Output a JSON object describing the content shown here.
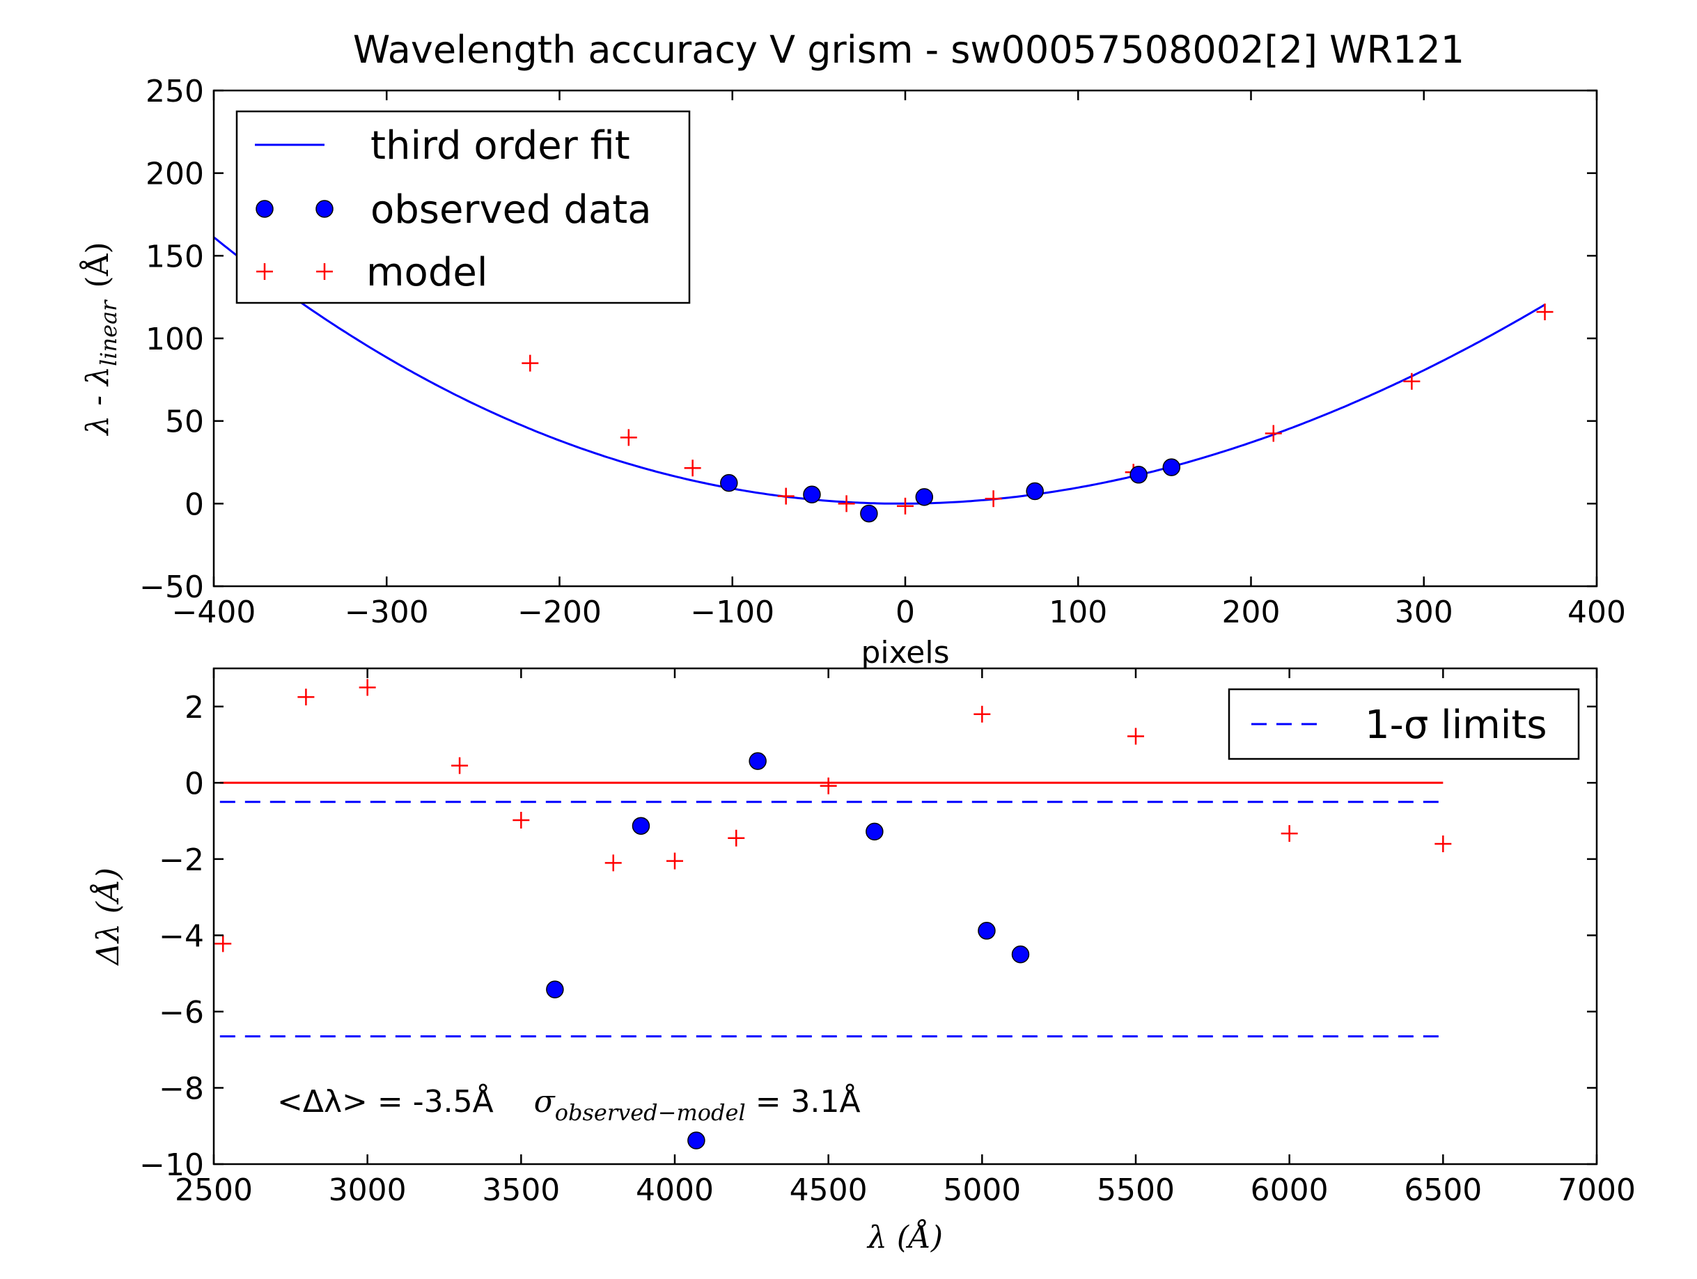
{
  "chart_data": [
    {
      "type": "scatter",
      "title": "Wavelength accuracy V grism - sw00057508002[2] WR121",
      "xlabel": "pixels",
      "ylabel": {
        "prefix": "λ - λ",
        "sub": "linear",
        "unit": "(Å)"
      },
      "xlim": [
        -400,
        400
      ],
      "ylim": [
        -50,
        250
      ],
      "xticks": [
        -400,
        -300,
        -200,
        -100,
        0,
        100,
        200,
        300,
        400
      ],
      "yticks": [
        -50,
        0,
        50,
        100,
        150,
        200,
        250
      ],
      "xtick_labels": [
        "−400",
        "−300",
        "−200",
        "−100",
        "0",
        "100",
        "200",
        "300",
        "400"
      ],
      "ytick_labels": [
        "−50",
        "0",
        "50",
        "100",
        "150",
        "200",
        "250"
      ],
      "fit_coeffs": [
        0.0,
        0.005,
        0.00094,
        -2e-07
      ],
      "legend": {
        "position": "upper-left",
        "entries": [
          {
            "label": "third order fit",
            "style": "line",
            "color": "#0000ff"
          },
          {
            "label": "observed data",
            "style": "circle",
            "color": "#0000ff"
          },
          {
            "label": "model",
            "style": "plus",
            "color": "#ff0000"
          }
        ]
      },
      "series": [
        {
          "name": "third order fit",
          "style": "line",
          "color": "#0000ff",
          "x_range": [
            -400,
            370
          ]
        },
        {
          "name": "observed data",
          "style": "circle",
          "color": "#0000ff",
          "points": [
            [
              -102,
              12.5
            ],
            [
              -54,
              5.5
            ],
            [
              -21,
              -6
            ],
            [
              11,
              4
            ],
            [
              75,
              7.5
            ],
            [
              135,
              17.5
            ],
            [
              154,
              22
            ]
          ]
        },
        {
          "name": "model",
          "style": "plus",
          "color": "#ff0000",
          "points": [
            [
              -217,
              85
            ],
            [
              -160,
              40
            ],
            [
              -123,
              21.5
            ],
            [
              -69,
              4.5
            ],
            [
              -34,
              0
            ],
            [
              0,
              -1.5
            ],
            [
              51,
              3
            ],
            [
              132,
              19
            ],
            [
              213,
              42.5
            ],
            [
              293,
              74
            ],
            [
              370,
              116
            ]
          ]
        }
      ]
    },
    {
      "type": "scatter",
      "xlabel": "λ (Å)",
      "ylabel": "Δλ (Å)",
      "xlim": [
        2500,
        7000
      ],
      "ylim": [
        -10,
        3
      ],
      "xticks": [
        2500,
        3000,
        3500,
        4000,
        4500,
        5000,
        5500,
        6000,
        6500,
        7000
      ],
      "yticks": [
        -10,
        -8,
        -6,
        -4,
        -2,
        0,
        2
      ],
      "xtick_labels": [
        "2500",
        "3000",
        "3500",
        "4000",
        "4500",
        "5000",
        "5500",
        "6000",
        "6500",
        "7000"
      ],
      "ytick_labels": [
        "−10",
        "−8",
        "−6",
        "−4",
        "−2",
        "0",
        "2"
      ],
      "legend": {
        "position": "upper-right",
        "entries": [
          {
            "label": "1-σ limits",
            "style": "dashed",
            "color": "#0000ff"
          }
        ]
      },
      "series": [
        {
          "name": "zero",
          "style": "line",
          "color": "#ff0000",
          "points": [
            [
              2520,
              0
            ],
            [
              6500,
              0
            ]
          ]
        },
        {
          "name": "1-σ limits",
          "style": "dashed",
          "color": "#0000ff",
          "points": [
            [
              2520,
              -0.5
            ],
            [
              6500,
              -0.5
            ]
          ]
        },
        {
          "name": "1-σ limits",
          "style": "dashed",
          "color": "#0000ff",
          "points": [
            [
              2520,
              -6.65
            ],
            [
              6500,
              -6.65
            ]
          ]
        },
        {
          "name": "observed data",
          "style": "circle",
          "color": "#0000ff",
          "points": [
            [
              3610,
              -5.42
            ],
            [
              3890,
              -1.13
            ],
            [
              4070,
              -9.38
            ],
            [
              4270,
              0.57
            ],
            [
              4650,
              -1.28
            ],
            [
              5015,
              -3.88
            ],
            [
              5125,
              -4.5
            ]
          ]
        },
        {
          "name": "model",
          "style": "plus",
          "color": "#ff0000",
          "points": [
            [
              2530,
              -4.22
            ],
            [
              2800,
              2.25
            ],
            [
              3000,
              2.5
            ],
            [
              3300,
              0.45
            ],
            [
              3500,
              -0.98
            ],
            [
              3800,
              -2.1
            ],
            [
              4000,
              -2.05
            ],
            [
              4200,
              -1.45
            ],
            [
              4500,
              -0.08
            ],
            [
              5000,
              1.8
            ],
            [
              5500,
              1.22
            ],
            [
              6000,
              -1.33
            ],
            [
              6500,
              -1.6
            ]
          ]
        }
      ],
      "annotation": {
        "mean": "<Δλ> = -3.5Å",
        "sigma_symbol": "σ",
        "sigma_sub": "observed−model",
        "sigma_value": "= 3.1Å"
      }
    }
  ]
}
